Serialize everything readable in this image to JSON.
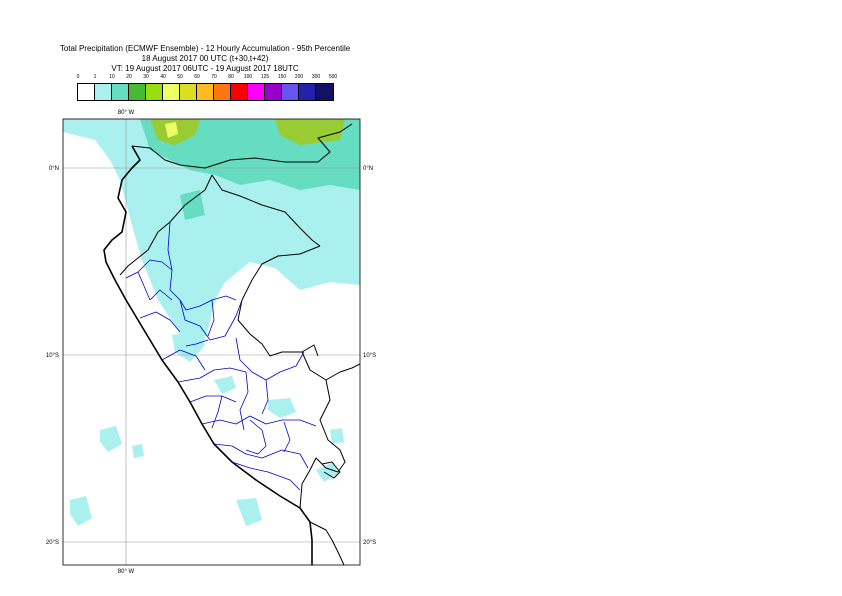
{
  "title": {
    "line1": "Total Precipitation (ECMWF Ensemble) - 12 Hourly Accumulation - 95th Percentile",
    "line2": "18 August 2017 00 UTC (t+30,t+42)",
    "line3": "VT: 19 August 2017 06UTC - 19 August 2017 18UTC"
  },
  "legend": {
    "ticks": [
      "0",
      "1",
      "10",
      "20",
      "30",
      "40",
      "50",
      "60",
      "70",
      "80",
      "100",
      "125",
      "150",
      "200",
      "300",
      "500"
    ],
    "colors": [
      "#ffffff",
      "#aaf0ee",
      "#66dcc0",
      "#44bb33",
      "#99dd11",
      "#eeff66",
      "#dddd22",
      "#ffbb22",
      "#ff7711",
      "#ff0000",
      "#ff00ff",
      "#9900cc",
      "#6655ee",
      "#2222aa",
      "#111166"
    ]
  },
  "map": {
    "lon_labels": {
      "top": "80° W",
      "bottom": "80° W"
    },
    "lat_labels": [
      {
        "text": "0°N"
      },
      {
        "text": "10°S"
      },
      {
        "text": "20°S"
      }
    ],
    "colors": {
      "light": "#aaf0ee",
      "medium": "#66dcc0",
      "green": "#99cc33",
      "yellow": "#eeff66",
      "coast": "#000000",
      "regions": "#0000cc",
      "grid": "#999999"
    }
  }
}
